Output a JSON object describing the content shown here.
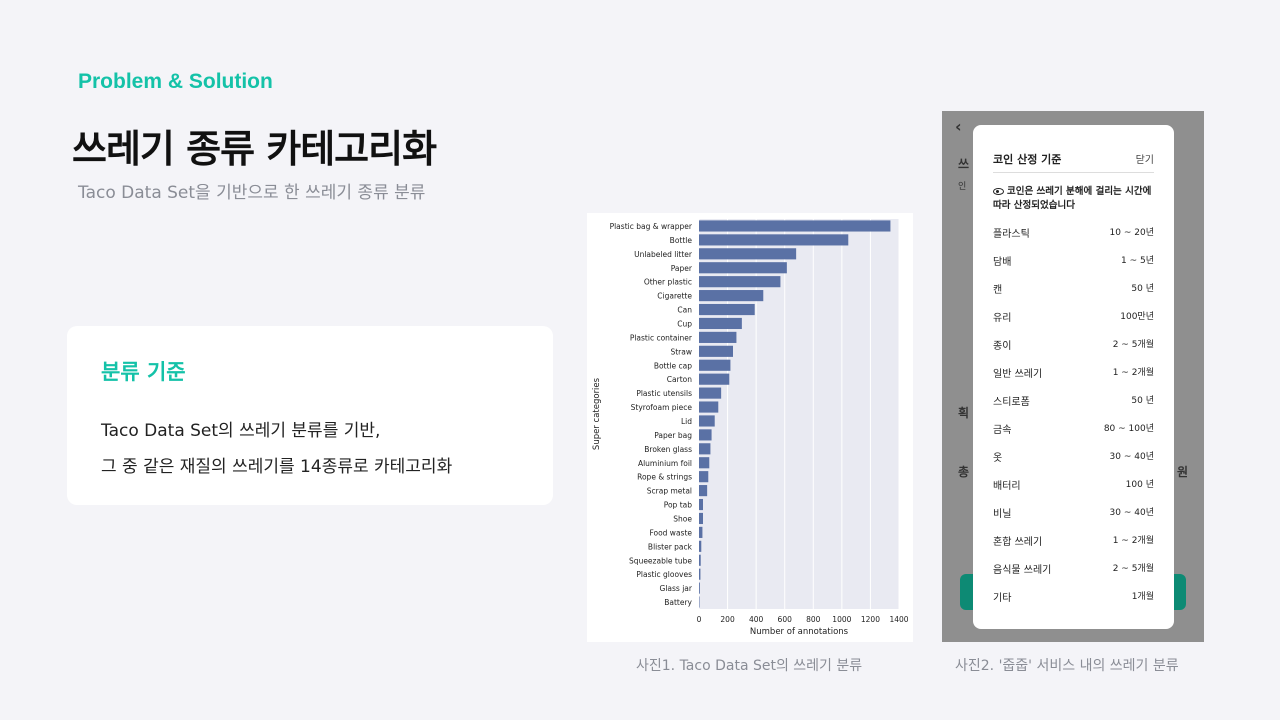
{
  "header": {
    "eyebrow": "Problem & Solution",
    "title": "쓰레기 종류 카테고리화",
    "subtitle": "Taco Data Set을 기반으로 한 쓰레기 종류 분류"
  },
  "card": {
    "title": "분류 기준",
    "line1": "Taco Data Set의 쓰레기 분류를 기반,",
    "line2": "그 중 같은 재질의 쓰레기를 14종류로 카테고리화"
  },
  "captions": {
    "photo1": "사진1. Taco Data Set의 쓰레기 분류",
    "photo2": "사진2. '줍줍' 서비스 내의 쓰레기 분류"
  },
  "chart_data": {
    "type": "bar",
    "orientation": "horizontal",
    "xlabel": "Number of annotations",
    "ylabel": "Super categories",
    "xlim": [
      0,
      1400
    ],
    "xticks": [
      0,
      200,
      400,
      600,
      800,
      1000,
      1200,
      1400
    ],
    "grid": true,
    "bar_color": "#5a71a5",
    "categories": [
      "Plastic bag & wrapper",
      "Bottle",
      "Unlabeled litter",
      "Paper",
      "Other plastic",
      "Cigarette",
      "Can",
      "Cup",
      "Plastic container",
      "Straw",
      "Bottle cap",
      "Carton",
      "Plastic utensils",
      "Styrofoam piece",
      "Lid",
      "Paper bag",
      "Broken glass",
      "Aluminium foil",
      "Rope & strings",
      "Scrap metal",
      "Pop tab",
      "Shoe",
      "Food waste",
      "Blister pack",
      "Squeezable tube",
      "Plastic glooves",
      "Glass jar",
      "Battery"
    ],
    "values": [
      1340,
      1045,
      680,
      615,
      570,
      450,
      390,
      300,
      262,
      238,
      220,
      212,
      155,
      135,
      110,
      88,
      80,
      72,
      65,
      57,
      28,
      28,
      24,
      16,
      12,
      10,
      6,
      2
    ]
  },
  "phone": {
    "bg_letters": [
      "쓰",
      "인",
      "획",
      "총",
      "원"
    ],
    "modal": {
      "title": "코인 산정 기준",
      "close_label": "닫기",
      "eye_icon": "eye-icon",
      "note": "코인은 쓰레기 분해에 걸리는 시간에 따라 산정되었습니다",
      "rows": [
        {
          "name": "플라스틱",
          "value": "10 ~ 20년"
        },
        {
          "name": "담배",
          "value": "1 ~ 5년"
        },
        {
          "name": "캔",
          "value": "50 년"
        },
        {
          "name": "유리",
          "value": "100만년"
        },
        {
          "name": "종이",
          "value": "2 ~ 5개월"
        },
        {
          "name": "일반 쓰레기",
          "value": "1 ~ 2개월"
        },
        {
          "name": "스티로폼",
          "value": "50 년"
        },
        {
          "name": "금속",
          "value": "80 ~ 100년"
        },
        {
          "name": "옷",
          "value": "30 ~ 40년"
        },
        {
          "name": "배터리",
          "value": "100 년"
        },
        {
          "name": "비닐",
          "value": "30 ~ 40년"
        },
        {
          "name": "혼합 쓰레기",
          "value": "1 ~ 2개월"
        },
        {
          "name": "음식물 쓰레기",
          "value": "2 ~ 5개월"
        },
        {
          "name": "기타",
          "value": "1개월"
        }
      ]
    }
  }
}
